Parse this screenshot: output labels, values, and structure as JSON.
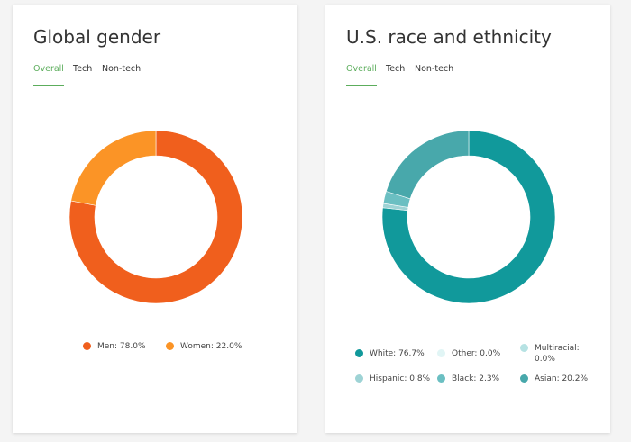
{
  "cards": [
    {
      "title": "Global gender",
      "tabs": [
        "Overall",
        "Tech",
        "Non-tech"
      ],
      "active_tab": "Overall"
    },
    {
      "title": "U.S. race and ethnicity",
      "tabs": [
        "Overall",
        "Tech",
        "Non-tech"
      ],
      "active_tab": "Overall"
    }
  ],
  "chart_data": [
    {
      "type": "pie",
      "donut": true,
      "title": "Global gender",
      "slices": [
        {
          "label": "Men",
          "value": 78.0,
          "display": "Men: 78.0%",
          "color": "#f05f1d"
        },
        {
          "label": "Women",
          "value": 22.0,
          "display": "Women: 22.0%",
          "color": "#fb9426"
        }
      ],
      "legend_position": "bottom"
    },
    {
      "type": "pie",
      "donut": true,
      "title": "U.S. race and ethnicity",
      "slices": [
        {
          "label": "White",
          "value": 76.7,
          "display": "White: 76.7%",
          "color": "#11999b"
        },
        {
          "label": "Other",
          "value": 0.0,
          "display": "Other: 0.0%",
          "color": "#e1f5f5"
        },
        {
          "label": "Multiracial",
          "value": 0.0,
          "display": "Multiracial: 0.0%",
          "color": "#b6e2e3"
        },
        {
          "label": "Hispanic",
          "value": 0.8,
          "display": "Hispanic: 0.8%",
          "color": "#9ed3d5"
        },
        {
          "label": "Black",
          "value": 2.3,
          "display": "Black: 2.3%",
          "color": "#6bbfc2"
        },
        {
          "label": "Asian",
          "value": 20.2,
          "display": "Asian: 20.2%",
          "color": "#48a8ab"
        }
      ],
      "legend_position": "bottom"
    }
  ]
}
